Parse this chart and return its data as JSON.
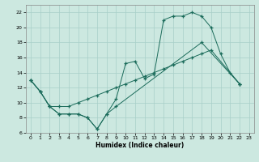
{
  "xlabel": "Humidex (Indice chaleur)",
  "xlim": [
    -0.5,
    23.5
  ],
  "ylim": [
    6,
    23
  ],
  "xticks": [
    0,
    1,
    2,
    3,
    4,
    5,
    6,
    7,
    8,
    9,
    10,
    11,
    12,
    13,
    14,
    15,
    16,
    17,
    18,
    19,
    20,
    21,
    22,
    23
  ],
  "yticks": [
    6,
    8,
    10,
    12,
    14,
    16,
    18,
    20,
    22
  ],
  "bg_color": "#cce8e0",
  "grid_color": "#a8cfc8",
  "line_color": "#1a6b5a",
  "line1_x": [
    0,
    1,
    2,
    3,
    4,
    5,
    6,
    7,
    8,
    9,
    10,
    11,
    12,
    13,
    14,
    15,
    16,
    17,
    18,
    19,
    20,
    21,
    22
  ],
  "line1_y": [
    13,
    11.5,
    9.5,
    8.5,
    8.5,
    8.5,
    8.0,
    6.5,
    8.5,
    10.5,
    15.2,
    15.5,
    13.2,
    13.8,
    21.0,
    21.5,
    21.5,
    22.0,
    21.5,
    20.0,
    16.5,
    14.0,
    12.5
  ],
  "line2_x": [
    0,
    1,
    2,
    3,
    4,
    5,
    6,
    7,
    8,
    9,
    18,
    22
  ],
  "line2_y": [
    13,
    11.5,
    9.5,
    8.5,
    8.5,
    8.5,
    8.0,
    6.5,
    8.5,
    9.5,
    18.0,
    12.5
  ],
  "line3_x": [
    0,
    1,
    2,
    3,
    4,
    5,
    6,
    7,
    8,
    9,
    10,
    11,
    12,
    13,
    14,
    15,
    16,
    17,
    18,
    19,
    22
  ],
  "line3_y": [
    13,
    11.5,
    9.5,
    9.5,
    9.5,
    10.0,
    10.5,
    11.0,
    11.5,
    12.0,
    12.5,
    13.0,
    13.5,
    14.0,
    14.5,
    15.0,
    15.5,
    16.0,
    16.5,
    17.0,
    12.5
  ]
}
